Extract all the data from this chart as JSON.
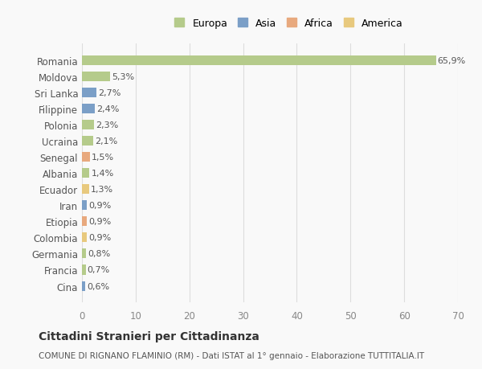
{
  "countries": [
    "Romania",
    "Moldova",
    "Sri Lanka",
    "Filippine",
    "Polonia",
    "Ucraina",
    "Senegal",
    "Albania",
    "Ecuador",
    "Iran",
    "Etiopia",
    "Colombia",
    "Germania",
    "Francia",
    "Cina"
  ],
  "values": [
    65.9,
    5.3,
    2.7,
    2.4,
    2.3,
    2.1,
    1.5,
    1.4,
    1.3,
    0.9,
    0.9,
    0.9,
    0.8,
    0.7,
    0.6
  ],
  "labels": [
    "65,9%",
    "5,3%",
    "2,7%",
    "2,4%",
    "2,3%",
    "2,1%",
    "1,5%",
    "1,4%",
    "1,3%",
    "0,9%",
    "0,9%",
    "0,9%",
    "0,8%",
    "0,7%",
    "0,6%"
  ],
  "continents": [
    "Europa",
    "Europa",
    "Asia",
    "Asia",
    "Europa",
    "Europa",
    "Africa",
    "Europa",
    "America",
    "Asia",
    "Africa",
    "America",
    "Europa",
    "Europa",
    "Asia"
  ],
  "continent_colors": {
    "Europa": "#b5cb8b",
    "Asia": "#7b9fc7",
    "Africa": "#e8a97e",
    "America": "#e8c97e"
  },
  "legend_order": [
    "Europa",
    "Asia",
    "Africa",
    "America"
  ],
  "legend_colors": [
    "#b5cb8b",
    "#7b9fc7",
    "#e8a97e",
    "#e8c97e"
  ],
  "title": "Cittadini Stranieri per Cittadinanza",
  "subtitle": "COMUNE DI RIGNANO FLAMINIO (RM) - Dati ISTAT al 1° gennaio - Elaborazione TUTTITALIA.IT",
  "xlim": [
    0,
    70
  ],
  "xticks": [
    0,
    10,
    20,
    30,
    40,
    50,
    60,
    70
  ],
  "background_color": "#f9f9f9",
  "grid_color": "#dddddd",
  "bar_height": 0.6
}
